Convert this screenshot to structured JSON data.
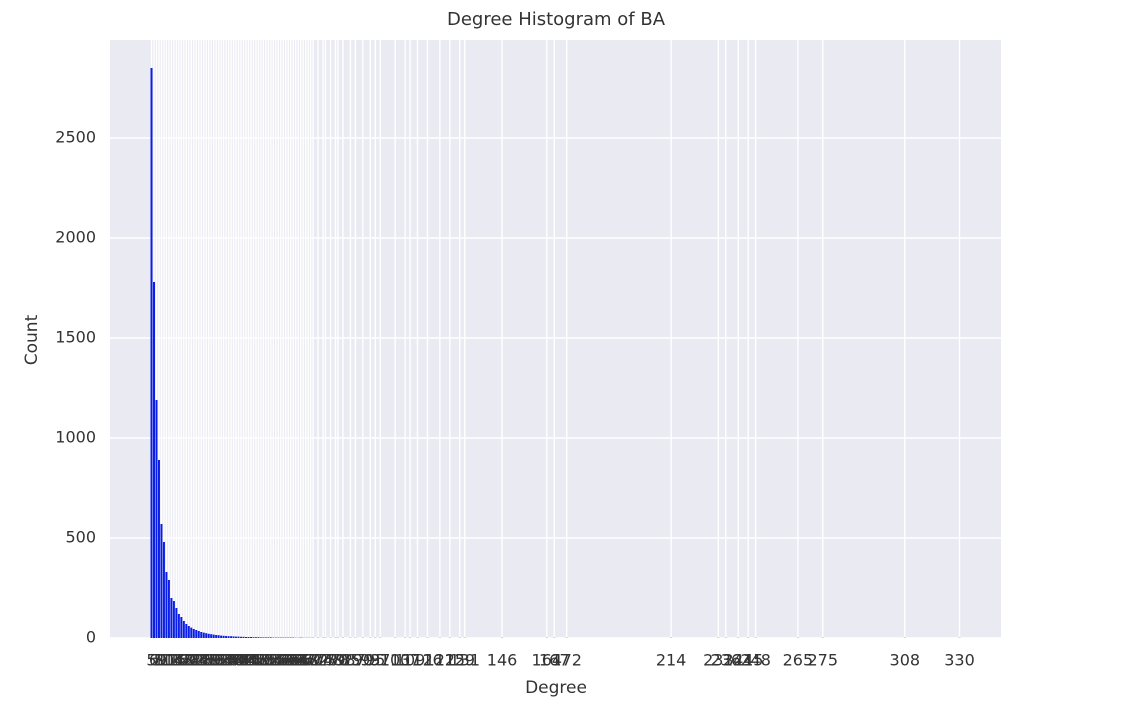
{
  "chart_data": {
    "type": "bar",
    "title": "Degree Histogram of BA",
    "xlabel": "Degree",
    "ylabel": "Count",
    "color": "#0a1ee8",
    "grid": true,
    "x": [
      5,
      6,
      7,
      8,
      9,
      10,
      11,
      12,
      13,
      14,
      15,
      16,
      17,
      18,
      19,
      20,
      21,
      22,
      23,
      24,
      25,
      26,
      27,
      28,
      29,
      30,
      31,
      32,
      33,
      34,
      35,
      36,
      37,
      38,
      39,
      40,
      41,
      42,
      43,
      44,
      45,
      46,
      47,
      48,
      49,
      50,
      51,
      52,
      53,
      54,
      55,
      56,
      57,
      58,
      59,
      60,
      61,
      62,
      63,
      64,
      65,
      66,
      67,
      68,
      69,
      70,
      72,
      74,
      75,
      77,
      79,
      80,
      82,
      85,
      87,
      90,
      93,
      95,
      97,
      103,
      107,
      109,
      112,
      116,
      121,
      125,
      129,
      131,
      146,
      164,
      167,
      172,
      214,
      233,
      236,
      241,
      245,
      248,
      265,
      275,
      308,
      330
    ],
    "values": [
      2850,
      1780,
      1190,
      890,
      570,
      480,
      330,
      290,
      200,
      185,
      150,
      120,
      105,
      85,
      70,
      60,
      52,
      45,
      40,
      35,
      30,
      27,
      24,
      21,
      19,
      17,
      15,
      14,
      12,
      11,
      10,
      9,
      9,
      8,
      7,
      7,
      6,
      6,
      5,
      5,
      5,
      4,
      4,
      4,
      3,
      3,
      3,
      3,
      3,
      2,
      2,
      2,
      2,
      2,
      2,
      2,
      2,
      2,
      1,
      1,
      2,
      1,
      1,
      1,
      1,
      1,
      1,
      1,
      1,
      1,
      1,
      1,
      1,
      1,
      1,
      1,
      1,
      1,
      1,
      1,
      1,
      1,
      1,
      1,
      1,
      1,
      1,
      1,
      1,
      1,
      1,
      1,
      1,
      1,
      1,
      1,
      1,
      1,
      1,
      1,
      1,
      1
    ],
    "xticks": [
      5,
      6,
      7,
      8,
      9,
      10,
      11,
      12,
      13,
      14,
      15,
      16,
      17,
      18,
      19,
      20,
      21,
      22,
      23,
      24,
      25,
      26,
      27,
      28,
      29,
      30,
      31,
      32,
      33,
      34,
      35,
      36,
      37,
      38,
      39,
      40,
      41,
      42,
      43,
      44,
      45,
      46,
      47,
      48,
      49,
      50,
      51,
      52,
      53,
      54,
      55,
      56,
      57,
      58,
      59,
      60,
      61,
      62,
      63,
      64,
      65,
      66,
      67,
      68,
      69,
      70,
      72,
      74,
      75,
      77,
      79,
      80,
      82,
      85,
      87,
      90,
      93,
      95,
      97,
      103,
      107,
      109,
      112,
      116,
      121,
      125,
      129,
      131,
      146,
      164,
      167,
      172,
      214,
      233,
      236,
      241,
      245,
      248,
      265,
      275,
      308,
      330
    ],
    "xlim": [
      -11.7,
      346.7
    ],
    "ylim": [
      0,
      2990
    ],
    "yticks": [
      0,
      500,
      1000,
      1500,
      2000,
      2500
    ]
  }
}
